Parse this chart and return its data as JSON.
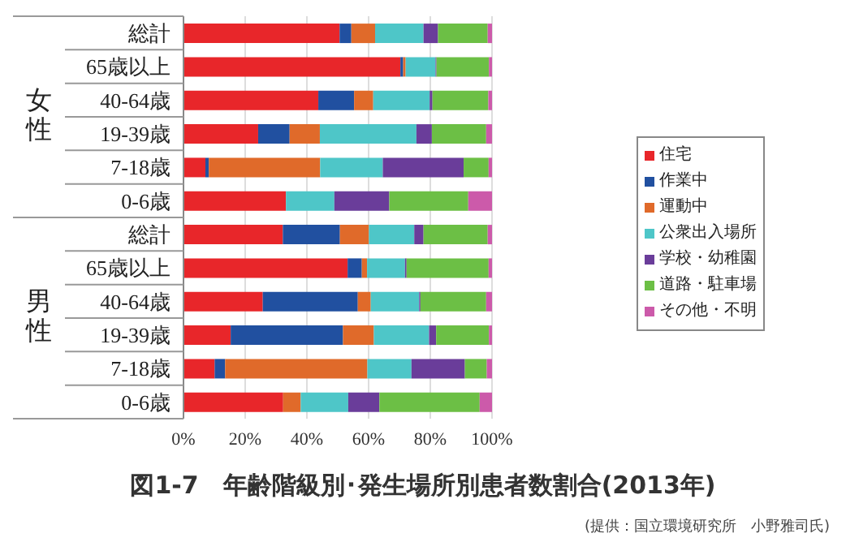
{
  "chart_data": {
    "type": "bar",
    "orientation": "horizontal",
    "stacked": true,
    "title": "図1-7　年齢階級別･発生場所別患者数割合(2013年)",
    "annotations": [
      "女性",
      "男性",
      "(提供：国立環境研究所　小野雅司氏)"
    ],
    "categories": [
      "総計",
      "65歳以上",
      "40-64歳",
      "19-39歳",
      "7-18歳",
      "0-6歳",
      "総計",
      "65歳以上",
      "40-64歳",
      "19-39歳",
      "7-18歳",
      "0-6歳"
    ],
    "series": [
      {
        "name": "住宅",
        "color": "#e8262a",
        "values": [
          50.6,
          70.3,
          43.7,
          24.2,
          7.1,
          33.2,
          32.2,
          53.2,
          25.7,
          15.3,
          10.1,
          32.3
        ]
      },
      {
        "name": "作業中",
        "color": "#2150a0",
        "values": [
          3.8,
          0.9,
          11.6,
          10.2,
          1.1,
          0,
          18.5,
          4.6,
          30.8,
          36.4,
          3.4,
          0
        ]
      },
      {
        "name": "運動中",
        "color": "#e06a2a",
        "values": [
          7.7,
          0.8,
          6.2,
          9.8,
          36.1,
          0,
          9.4,
          1.7,
          4.2,
          10.0,
          46.1,
          5.7
        ]
      },
      {
        "name": "公衆出入場所",
        "color": "#4ec6c8",
        "values": [
          15.7,
          9.7,
          18.3,
          31.3,
          20.3,
          15.7,
          14.7,
          12.3,
          15.7,
          17.9,
          14.3,
          15.4
        ]
      },
      {
        "name": "学校・幼稚園",
        "color": "#6a3d9a",
        "values": [
          4.7,
          0.3,
          0.9,
          5.0,
          26.2,
          17.8,
          3.0,
          0.5,
          0.4,
          2.3,
          17.3,
          10.1
        ]
      },
      {
        "name": "道路・駐車場",
        "color": "#6cbf45",
        "values": [
          16.1,
          17.0,
          18.1,
          17.6,
          8.1,
          25.6,
          20.8,
          26.6,
          21.3,
          17.1,
          7.1,
          32.5
        ]
      },
      {
        "name": "その他・不明",
        "color": "#cc5aaa",
        "values": [
          1.4,
          1.0,
          1.2,
          1.9,
          1.1,
          7.7,
          1.4,
          1.1,
          1.9,
          1.0,
          1.7,
          4.0
        ]
      }
    ],
    "xlim": [
      0,
      100
    ],
    "xticks": [
      {
        "value": 0,
        "label": "0%"
      },
      {
        "value": 20,
        "label": "20%"
      },
      {
        "value": 40,
        "label": "40%"
      },
      {
        "value": 60,
        "label": "60%"
      },
      {
        "value": 80,
        "label": "80%"
      },
      {
        "value": 100,
        "label": "100%"
      }
    ],
    "grid": "x",
    "legend": "right"
  }
}
